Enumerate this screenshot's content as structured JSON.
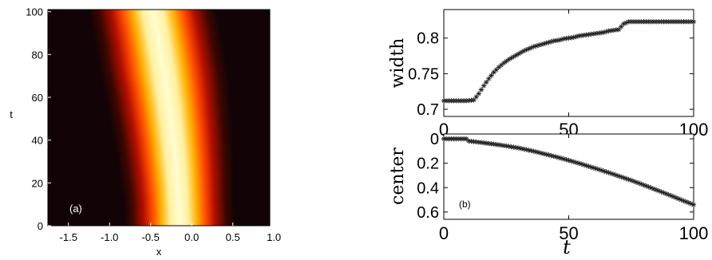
{
  "chart_data": [
    {
      "type": "heatmap",
      "panel_label": "(a)",
      "xlabel": "x",
      "ylabel": "t",
      "xlim": [
        -1.75,
        0.95
      ],
      "ylim": [
        0,
        101
      ],
      "x_ticks": [
        -1.5,
        -1.0,
        -0.5,
        0.0,
        0.5,
        1.0
      ],
      "x_tick_labels": [
        "-1.5",
        "-1.0",
        "-0.5",
        "0.0",
        "0.5",
        "1.0"
      ],
      "y_ticks": [
        0,
        20,
        40,
        60,
        80,
        100
      ],
      "y_tick_labels": [
        "0",
        "20",
        "40",
        "60",
        "80",
        "100"
      ],
      "colormap": "hot",
      "background_color": "#120406",
      "beam_center_start": -0.15,
      "beam_center_end": -0.47,
      "beam_width_start": 0.71,
      "beam_width_end": 0.82,
      "grid": false
    },
    {
      "type": "scatter",
      "marker": "*",
      "xlabel": "",
      "ylabel": "width",
      "xlim": [
        0,
        100
      ],
      "ylim": [
        0.69,
        0.84
      ],
      "x_ticks": [
        0,
        50,
        100
      ],
      "x_tick_labels": [
        "0",
        "50",
        "100"
      ],
      "y_ticks": [
        0.7,
        0.75,
        0.8
      ],
      "y_tick_labels": [
        "0.7",
        "0.75",
        "0.8"
      ],
      "x": [
        0,
        3,
        6,
        9,
        12,
        14,
        16,
        18,
        20,
        22,
        24,
        26,
        28,
        30,
        32,
        34,
        36,
        38,
        40,
        42,
        44,
        46,
        48,
        50,
        52,
        54,
        56,
        58,
        60,
        62,
        64,
        66,
        68,
        70,
        72,
        74,
        78,
        82,
        86,
        90,
        94,
        98,
        100
      ],
      "y": [
        0.712,
        0.712,
        0.712,
        0.712,
        0.713,
        0.722,
        0.733,
        0.743,
        0.752,
        0.759,
        0.765,
        0.77,
        0.774,
        0.778,
        0.782,
        0.785,
        0.788,
        0.79,
        0.792,
        0.794,
        0.796,
        0.797,
        0.799,
        0.8,
        0.801,
        0.803,
        0.804,
        0.805,
        0.806,
        0.807,
        0.808,
        0.81,
        0.811,
        0.812,
        0.82,
        0.823,
        0.823,
        0.823,
        0.823,
        0.823,
        0.823,
        0.823,
        0.823
      ],
      "grid": false
    },
    {
      "type": "scatter",
      "marker": "*",
      "panel_label": "(b)",
      "xlabel": "t",
      "ylabel": "center",
      "xlim": [
        0,
        100
      ],
      "ylim": [
        0.66,
        -0.04
      ],
      "y_inverted": true,
      "x_ticks": [
        0,
        50,
        100
      ],
      "x_tick_labels": [
        "0",
        "50",
        "100"
      ],
      "y_ticks": [
        0,
        0.2,
        0.4,
        0.6
      ],
      "y_tick_labels": [
        "0",
        "0.2",
        "0.4",
        "0.6"
      ],
      "x": [
        0,
        3,
        6,
        9,
        10,
        15,
        20,
        25,
        30,
        35,
        40,
        45,
        50,
        55,
        60,
        65,
        70,
        75,
        80,
        85,
        90,
        95,
        100
      ],
      "y": [
        0.0,
        0.0,
        0.0,
        0.0,
        0.018,
        0.03,
        0.043,
        0.058,
        0.075,
        0.097,
        0.122,
        0.148,
        0.176,
        0.206,
        0.238,
        0.27,
        0.305,
        0.34,
        0.378,
        0.418,
        0.458,
        0.5,
        0.54
      ],
      "grid": false
    }
  ]
}
